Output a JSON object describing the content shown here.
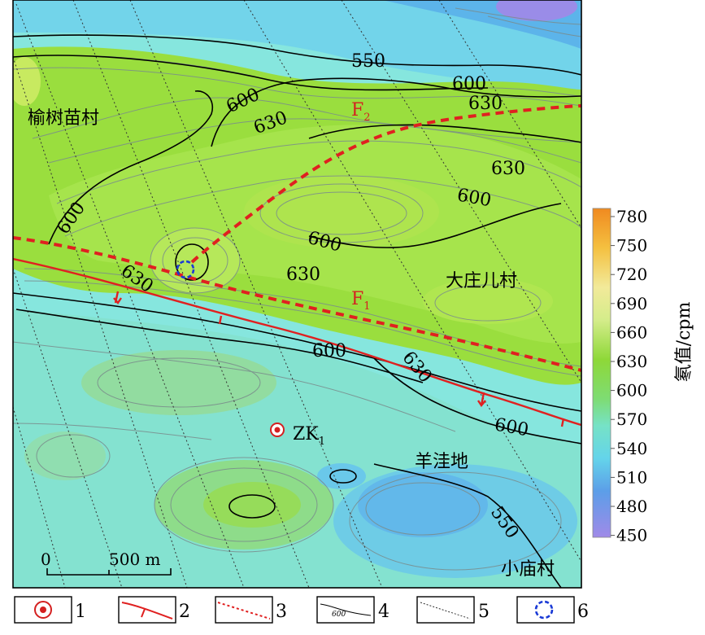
{
  "places": {
    "yushumiao": "榆树苗村",
    "dazhuanger": "大庄儿村",
    "yangwadi": "羊洼地",
    "xiaomiao": "小庙村"
  },
  "faults": {
    "f2_letter": "F",
    "f2_sub": "2",
    "f1_letter": "F",
    "f1_sub": "1"
  },
  "borehole": {
    "letter": "ZK",
    "sub": "1"
  },
  "contour_labels": {
    "c550_top": "550",
    "c600_tr": "600",
    "c630_tr": "630",
    "c600_nw": "600",
    "c630_nw": "630",
    "c630_e": "630",
    "c600_e": "600",
    "c600_w": "600",
    "c630_w": "630",
    "c600_mid": "600",
    "c630_mid": "630",
    "c600_s": "600",
    "c630_s": "630",
    "c600_se": "600",
    "c550_se": "550"
  },
  "scale_bar": {
    "zero": "0",
    "end": "500 m"
  },
  "colorbar": {
    "title": "氡值/cpm",
    "ticks": [
      "780",
      "750",
      "720",
      "690",
      "660",
      "630",
      "600",
      "570",
      "540",
      "510",
      "480",
      "450"
    ],
    "colors": [
      "#f0a020",
      "#f4c040",
      "#f0e090",
      "#d8ec90",
      "#b8e070",
      "#96d83a",
      "#80dc60",
      "#78e0b8",
      "#6ad8e0",
      "#5cb0e8",
      "#7088e0",
      "#9a88e8"
    ]
  },
  "legend": [
    {
      "num": "1",
      "icon": "borehole-icon"
    },
    {
      "num": "2",
      "icon": "fault-icon"
    },
    {
      "num": "3",
      "icon": "inferred-fault-icon"
    },
    {
      "num": "4",
      "icon": "contour-icon",
      "sample": "600"
    },
    {
      "num": "5",
      "icon": "dotted-line-icon"
    },
    {
      "num": "6",
      "icon": "anomaly-circle-icon"
    }
  ]
}
